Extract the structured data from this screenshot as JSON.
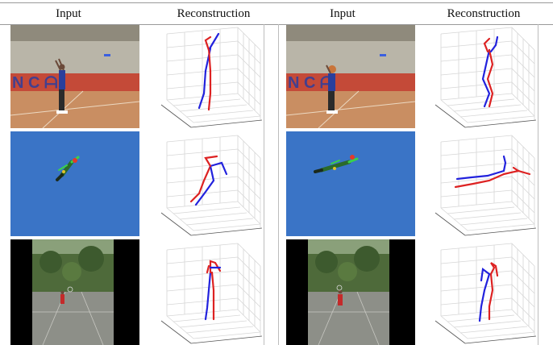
{
  "headers": [
    "Input",
    "Reconstruction",
    "Input",
    "Reconstruction"
  ],
  "rows": [
    {
      "scene": "basketball-gym",
      "left_pose": "standing-arms-raised",
      "right_pose": "standing-arms-raised-bent"
    },
    {
      "scene": "blue-sky",
      "left_pose": "flying-diagonal",
      "right_pose": "flying-horizontal"
    },
    {
      "scene": "outdoor-court",
      "left_pose": "standing-far",
      "right_pose": "standing-far-bent"
    }
  ],
  "colors": {
    "left_limb": "#2222dd",
    "right_limb": "#dd2222",
    "sky": "#3a74c6",
    "gym_wall": "#c44a38"
  }
}
